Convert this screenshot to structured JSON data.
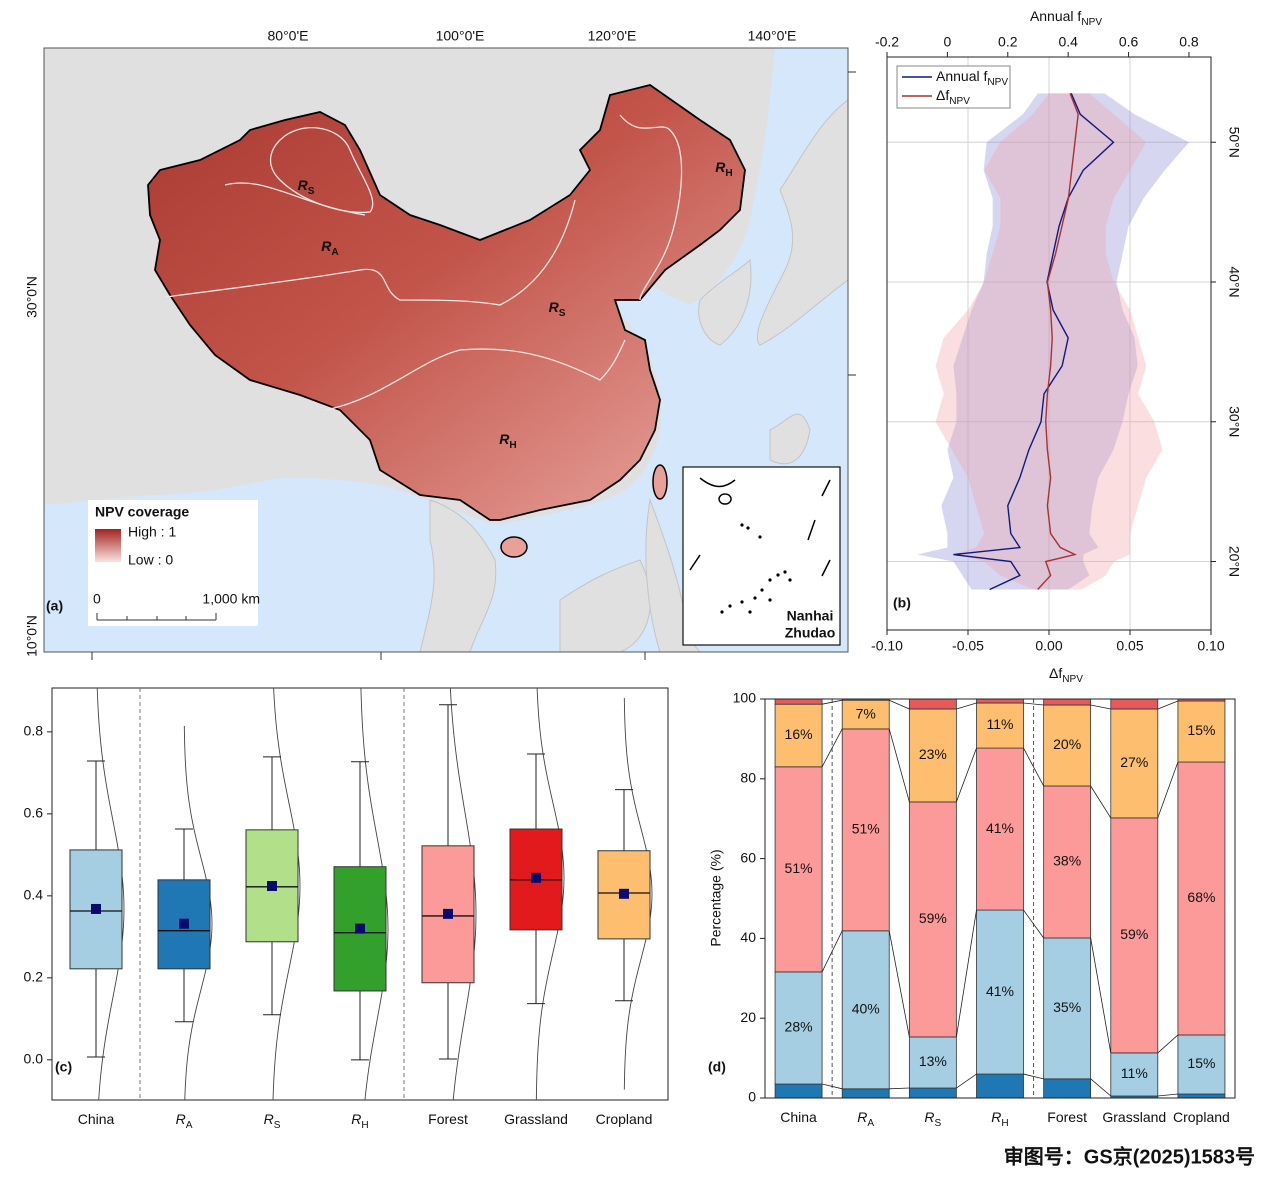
{
  "chart_data": [
    {
      "type": "map",
      "panel_label": "(a)",
      "xtick_labels": [
        "80°0'E",
        "100°0'E",
        "120°0'E",
        "140°0'E"
      ],
      "ytick_labels": [
        "30°0'N",
        "10°0'N"
      ],
      "regions": [
        {
          "text": "R",
          "sub": "S"
        },
        {
          "text": "R",
          "sub": "A"
        },
        {
          "text": "R",
          "sub": "S"
        },
        {
          "text": "R",
          "sub": "H"
        },
        {
          "text": "R",
          "sub": "H"
        }
      ],
      "legend_title": "NPV coverage",
      "legend_high": "High : 1",
      "legend_low": "Low : 0",
      "scale_labels": [
        "0",
        "1,000 km"
      ],
      "inset_label": [
        "Nanhai",
        "Zhudao"
      ]
    },
    {
      "type": "line",
      "panel_label": "(b)",
      "x2_label": {
        "text": "Annual f",
        "sub": "NPV"
      },
      "x_label": {
        "text": "Δf",
        "sub": "NPV"
      },
      "y": [
        53.5,
        52,
        50,
        48,
        46,
        44,
        42,
        40,
        38,
        36,
        34,
        32,
        30,
        28,
        26,
        24,
        22,
        21,
        20.5,
        20,
        19,
        18
      ],
      "ylim": [
        15.1,
        56.1
      ],
      "yticks": [
        {
          "value": 20,
          "label": "20°N"
        },
        {
          "value": 30,
          "label": "30°N"
        },
        {
          "value": 40,
          "label": "40°N"
        },
        {
          "value": 50,
          "label": "50°N"
        }
      ],
      "xlim": [
        -0.1,
        0.1
      ],
      "xticks": [
        {
          "value": -0.1,
          "label": "-0.10"
        },
        -0.05,
        {
          "value": 0,
          "label": "0.00"
        },
        0.05,
        {
          "value": 0.1,
          "label": "0.10"
        }
      ],
      "x2lim": [
        -0.2,
        0.873
      ],
      "x2ticks": [
        -0.2,
        0,
        0.2,
        0.4,
        0.6,
        0.8
      ],
      "grid": true,
      "legend": "top-left",
      "series": [
        {
          "name": "Annual f",
          "name_sub": "NPV",
          "color": "#0d1a80",
          "band_color": "#8a8ad6",
          "axis": "x2",
          "values": [
            0.41,
            0.44,
            0.55,
            0.45,
            0.4,
            0.37,
            0.35,
            0.33,
            0.35,
            0.4,
            0.38,
            0.32,
            0.31,
            0.27,
            0.24,
            0.2,
            0.21,
            0.24,
            0.02,
            0.21,
            0.24,
            0.14
          ],
          "lower": [
            0.3,
            0.25,
            0.13,
            0.12,
            0.15,
            0.15,
            0.13,
            0.12,
            0.08,
            0.05,
            0.02,
            0.03,
            0.03,
            0.0,
            0.02,
            -0.02,
            0.0,
            0.0,
            -0.1,
            0.02,
            0.05,
            0.08
          ],
          "upper": [
            0.52,
            0.62,
            0.8,
            0.72,
            0.65,
            0.6,
            0.58,
            0.56,
            0.58,
            0.62,
            0.63,
            0.6,
            0.58,
            0.55,
            0.5,
            0.48,
            0.47,
            0.5,
            0.45,
            0.45,
            0.47,
            0.4
          ]
        },
        {
          "name": "Δf",
          "name_sub": "NPV",
          "color": "#a83232",
          "band_color": "#f0a0a6",
          "values": [
            0.013,
            0.018,
            0.016,
            0.014,
            0.012,
            0.008,
            0.004,
            -0.001,
            0.001,
            0.002,
            0.001,
            -0.001,
            -0.002,
            -0.001,
            0.001,
            -0.001,
            0.001,
            0.007,
            0.016,
            -0.002,
            0.001,
            -0.007
          ],
          "lower": [
            0.0,
            -0.01,
            -0.03,
            -0.04,
            -0.03,
            -0.03,
            -0.035,
            -0.04,
            -0.05,
            -0.065,
            -0.07,
            -0.065,
            -0.07,
            -0.06,
            -0.05,
            -0.045,
            -0.04,
            -0.045,
            -0.06,
            -0.04,
            -0.03,
            -0.01
          ],
          "upper": [
            0.025,
            0.04,
            0.06,
            0.05,
            0.04,
            0.035,
            0.035,
            0.04,
            0.05,
            0.055,
            0.06,
            0.055,
            0.065,
            0.07,
            0.06,
            0.055,
            0.05,
            0.05,
            0.05,
            0.04,
            0.035,
            0.02
          ]
        }
      ]
    },
    {
      "type": "box",
      "panel_label": "(c)",
      "categories": [
        "China",
        "R",
        "R",
        "R",
        "Forest",
        "Grassland",
        "Cropland"
      ],
      "category_subs": [
        null,
        "A",
        "S",
        "H",
        null,
        null,
        null
      ],
      "ylim": [
        -0.098,
        0.907
      ],
      "yticks": [
        {
          "value": 0,
          "label": "0.0"
        },
        0.2,
        0.4,
        0.6,
        0.8
      ],
      "colors": [
        "#a6cee3",
        "#1f78b4",
        "#b2df8a",
        "#33a02c",
        "#fb9a99",
        "#e31a1c",
        "#fdbf6f"
      ],
      "mean_color": "#0a0a6e",
      "q1": [
        0.222,
        0.222,
        0.288,
        0.168,
        0.188,
        0.317,
        0.295
      ],
      "median": [
        0.363,
        0.315,
        0.422,
        0.31,
        0.351,
        0.439,
        0.407
      ],
      "q3": [
        0.512,
        0.439,
        0.561,
        0.471,
        0.522,
        0.563,
        0.51
      ],
      "mean": [
        0.368,
        0.332,
        0.424,
        0.32,
        0.356,
        0.444,
        0.405
      ],
      "whisker_low": [
        0.007,
        0.093,
        0.11,
        0.0,
        0.002,
        0.137,
        0.144
      ],
      "whisker_high": [
        0.729,
        0.563,
        0.739,
        0.727,
        0.866,
        0.746,
        0.659
      ]
    },
    {
      "type": "stacked_bar",
      "panel_label": "(d)",
      "categories": [
        "China",
        "R",
        "R",
        "R",
        "Forest",
        "Grassland",
        "Cropland"
      ],
      "category_subs": [
        null,
        "A",
        "S",
        "H",
        null,
        null,
        null
      ],
      "ylabel": "Percentage (%)",
      "ylim": [
        0,
        100
      ],
      "yticks": [
        0,
        20,
        40,
        60,
        80,
        100
      ],
      "series": [
        {
          "color": "#1f78b4",
          "values": [
            3.5,
            2.3,
            2.5,
            6.0,
            4.8,
            0.5,
            1.0
          ]
        },
        {
          "color": "#a6cee3",
          "values": [
            28.1,
            39.6,
            12.8,
            41.1,
            35.3,
            10.8,
            14.8
          ],
          "value_labels": [
            "28%",
            "40%",
            "13%",
            "41%",
            "35%",
            "11%",
            "15%"
          ]
        },
        {
          "color": "#fb9a99",
          "values": [
            51.4,
            50.6,
            58.9,
            40.6,
            38.1,
            58.9,
            68.4
          ],
          "value_labels": [
            "51%",
            "51%",
            "59%",
            "41%",
            "38%",
            "59%",
            "68%"
          ]
        },
        {
          "color": "#fdbf6f",
          "values": [
            15.7,
            7.2,
            23.3,
            11.3,
            20.3,
            27.3,
            15.3
          ],
          "value_labels": [
            "16%",
            "7%",
            "23%",
            "11%",
            "20%",
            "27%",
            "15%"
          ]
        },
        {
          "color": "#e8595a",
          "values": [
            1.3,
            0.3,
            2.5,
            1.0,
            1.5,
            2.5,
            0.5
          ]
        }
      ]
    }
  ],
  "footer": "审图号：GS京(2025)1583号"
}
